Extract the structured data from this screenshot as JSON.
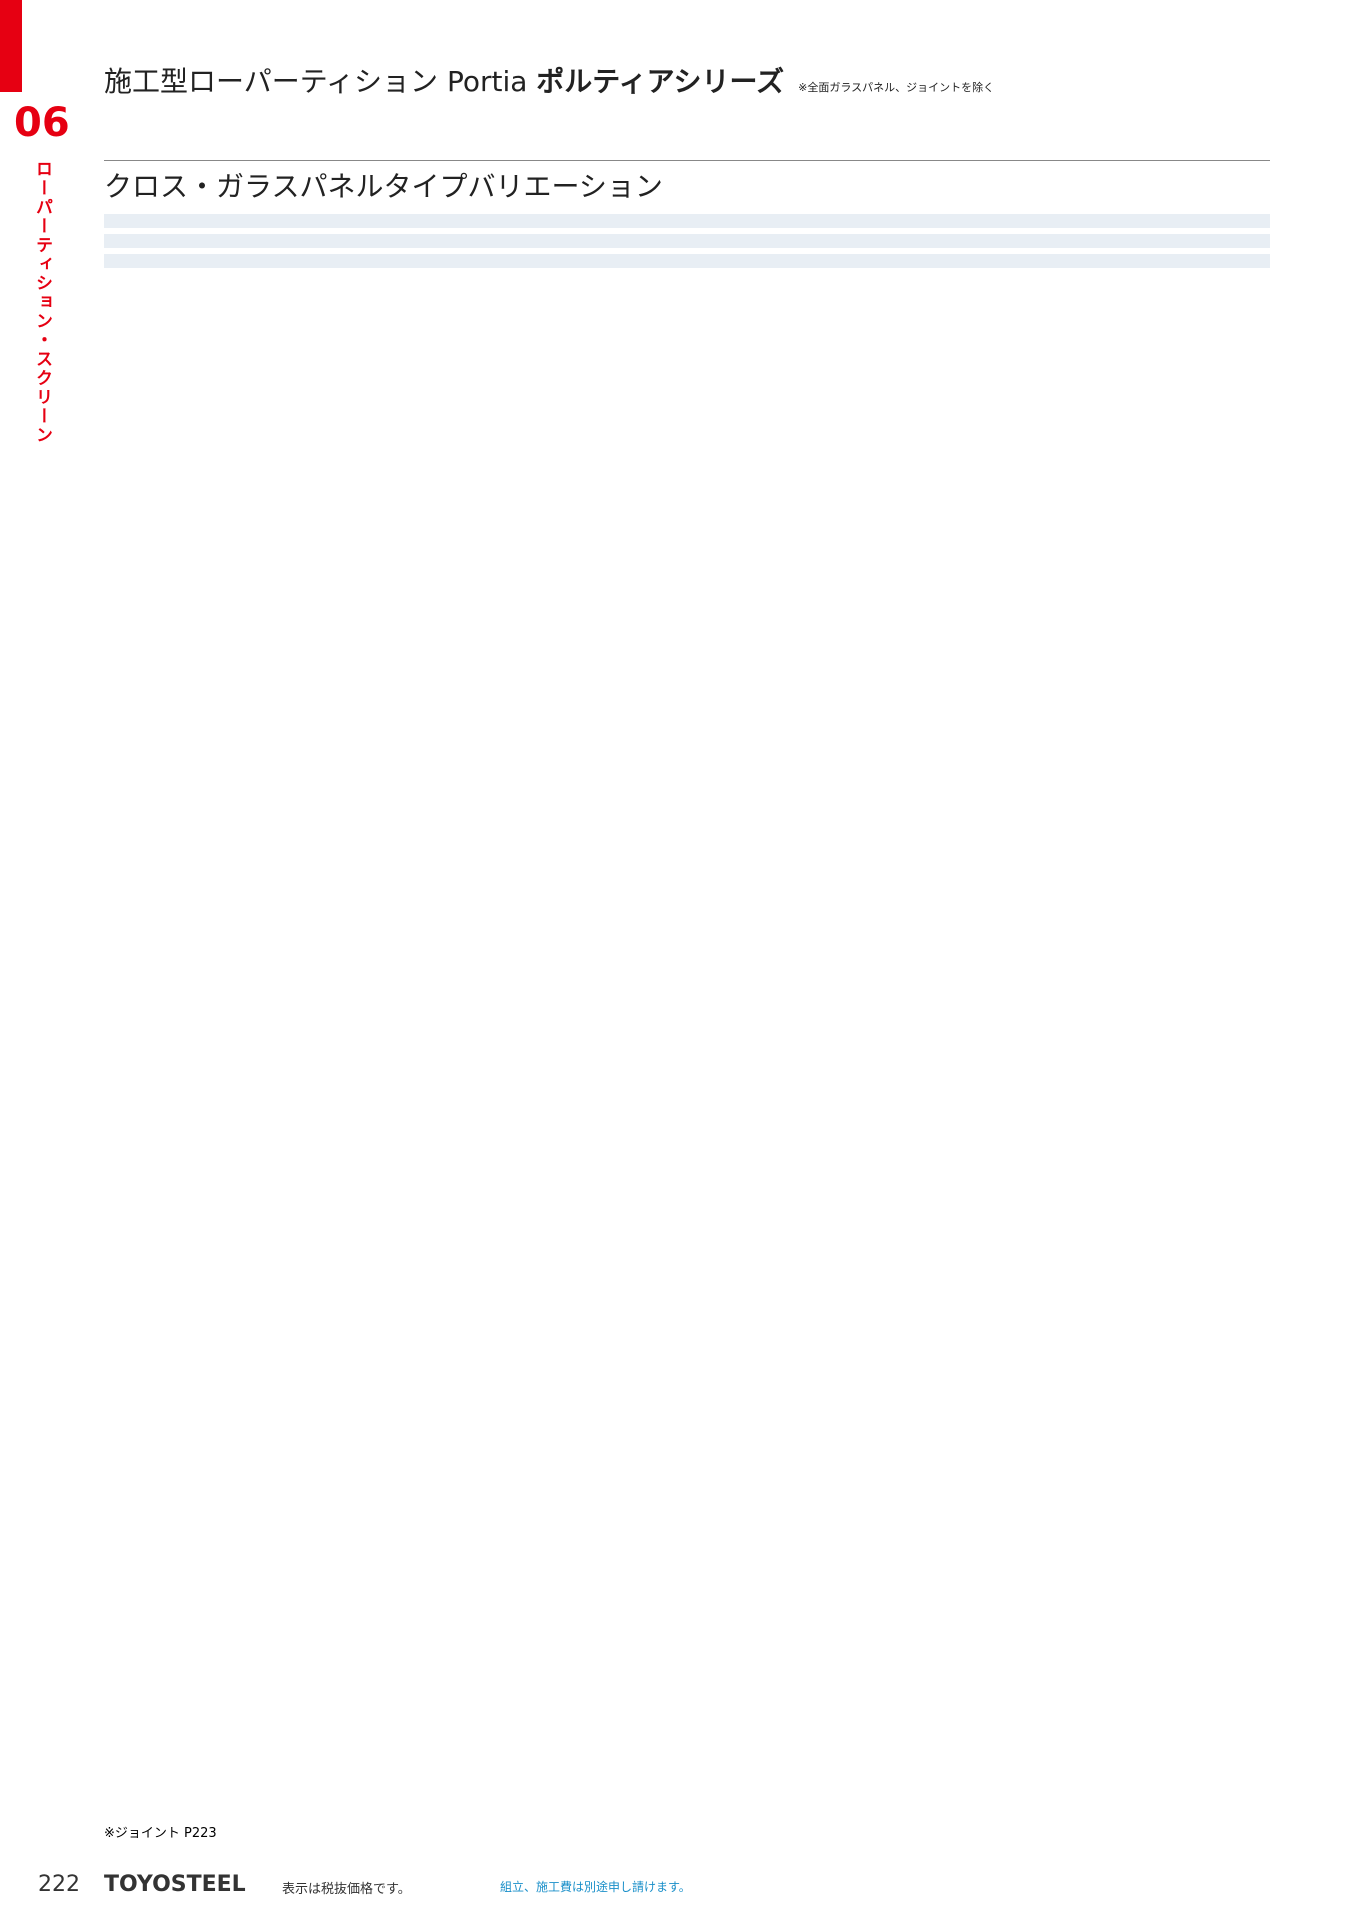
{
  "section_number": "06",
  "side_label": "ローパーティション・スクリーン",
  "header": {
    "title": "施工型ローパーティション Portia ",
    "series": "ポルティアシリーズ",
    "note": "※全面ガラスパネル、ジョイントを除く"
  },
  "section_title": "クロス・ガラスパネルタイプバリエーション",
  "table_skeleton_note": "",
  "footer": {
    "joint_note": "※ジョイント P223",
    "page_number": "222",
    "brand": "TOYOSTEEL",
    "tax_note": "表示は税抜価格です。",
    "construction_note": "組立、施工費は別途申し請けます。"
  }
}
